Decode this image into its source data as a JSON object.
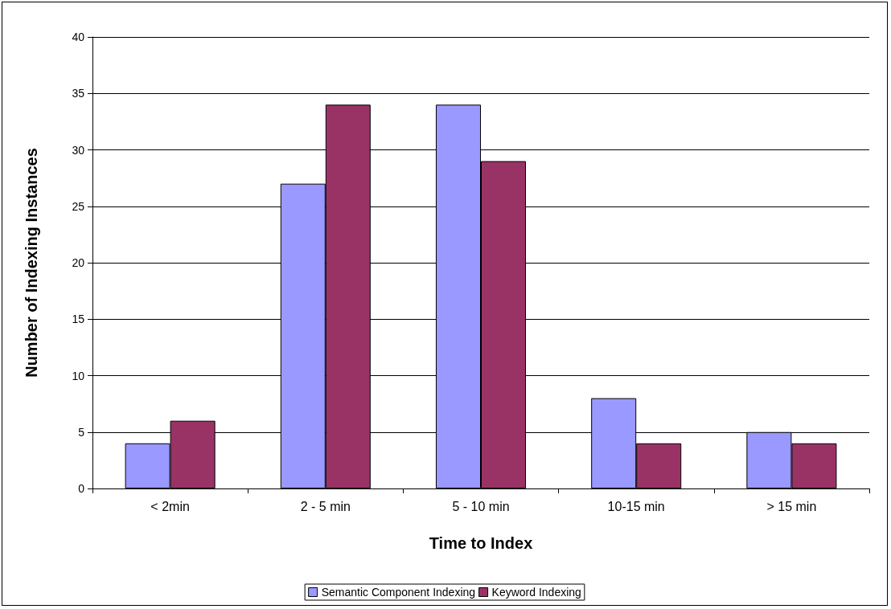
{
  "chart_data": {
    "type": "bar",
    "xlabel": "Time to Index",
    "ylabel": "Number of Indexing Instances",
    "categories": [
      "< 2min",
      "2 - 5 min",
      "5 - 10 min",
      "10-15 min",
      "> 15 min"
    ],
    "series": [
      {
        "name": "Semantic Component Indexing",
        "color": "#9999ff",
        "values": [
          4,
          27,
          34,
          8,
          5
        ]
      },
      {
        "name": "Keyword Indexing",
        "color": "#993366",
        "values": [
          6,
          34,
          29,
          4,
          4
        ]
      }
    ],
    "ylim": [
      0,
      40
    ],
    "yticks": [
      0,
      5,
      10,
      15,
      20,
      25,
      30,
      35,
      40
    ],
    "grid": "y",
    "legend": "bottom"
  }
}
